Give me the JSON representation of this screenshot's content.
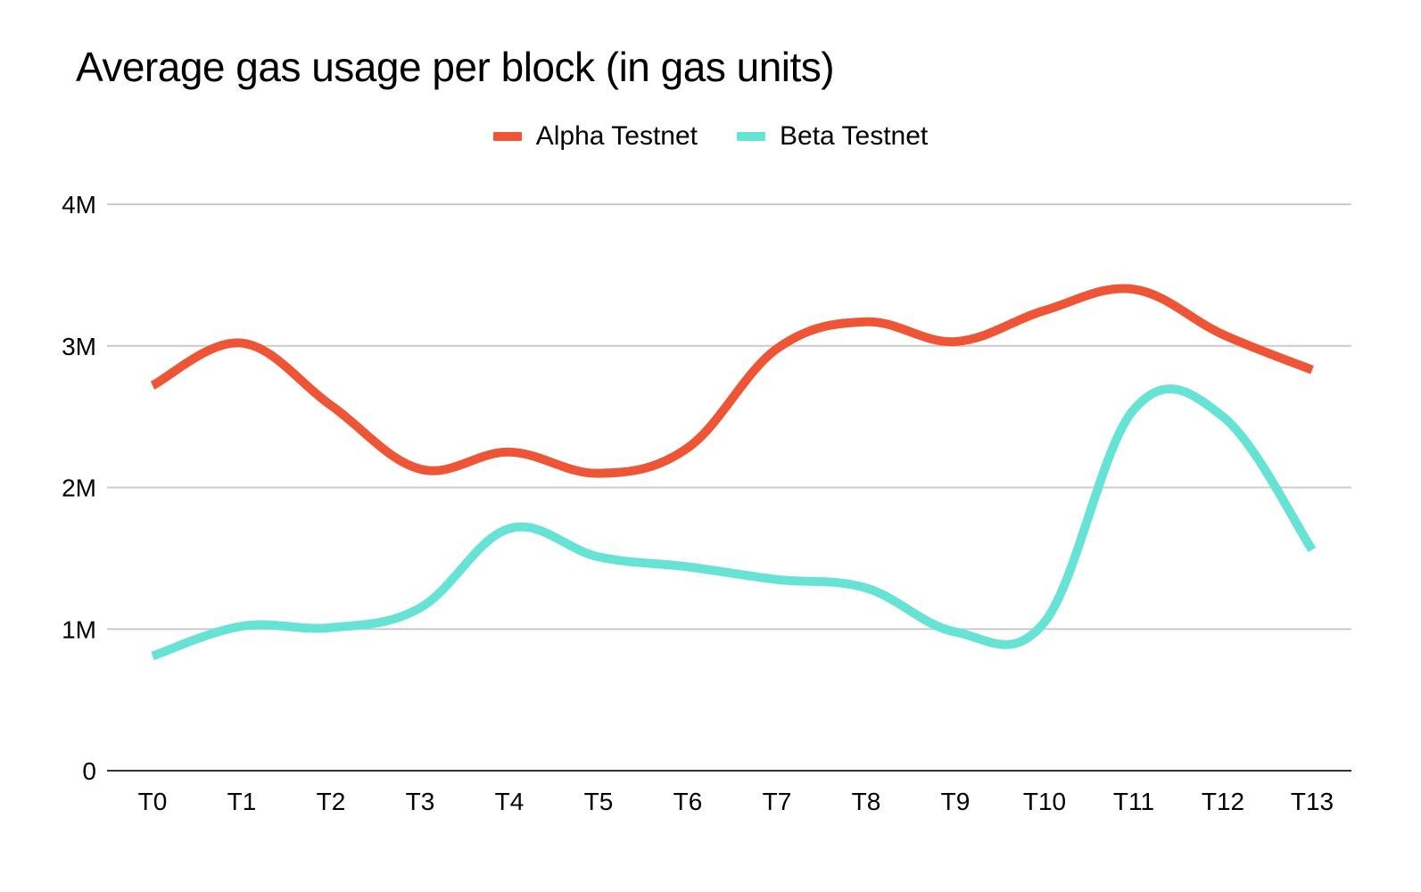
{
  "chart_data": {
    "type": "line",
    "title": "Average gas usage per block (in gas units)",
    "xlabel": "",
    "ylabel": "",
    "categories": [
      "T0",
      "T1",
      "T2",
      "T3",
      "T4",
      "T5",
      "T6",
      "T7",
      "T8",
      "T9",
      "T10",
      "T11",
      "T12",
      "T13"
    ],
    "ylim": [
      0,
      4000000
    ],
    "yticks": [
      0,
      1000000,
      2000000,
      3000000,
      4000000
    ],
    "ytick_labels": [
      "0",
      "1M",
      "2M",
      "3M",
      "4M"
    ],
    "grid": true,
    "legend_position": "top-center",
    "series": [
      {
        "name": "Alpha Testnet",
        "color": "#EE5537",
        "values": [
          2720000,
          3020000,
          2580000,
          2130000,
          2250000,
          2100000,
          2280000,
          2980000,
          3170000,
          3030000,
          3250000,
          3400000,
          3080000,
          2830000
        ]
      },
      {
        "name": "Beta Testnet",
        "color": "#66E3D4",
        "values": [
          810000,
          1020000,
          1010000,
          1150000,
          1710000,
          1510000,
          1440000,
          1350000,
          1290000,
          980000,
          1050000,
          2550000,
          2500000,
          1560000
        ]
      }
    ]
  }
}
